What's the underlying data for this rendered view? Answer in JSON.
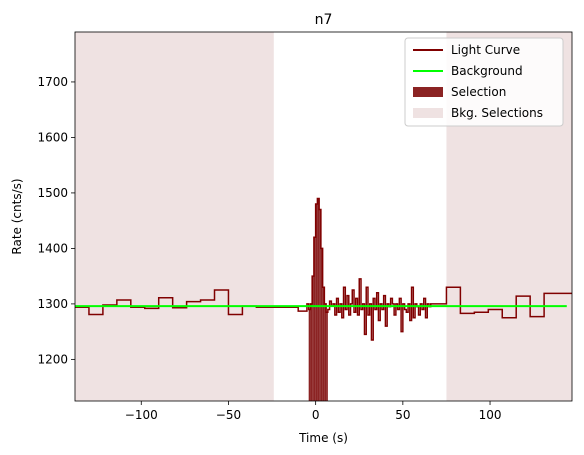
{
  "chart_data": {
    "type": "line",
    "title": "n7",
    "xlabel": "Time (s)",
    "ylabel": "Rate (cnts/s)",
    "xlim": [
      -138,
      147
    ],
    "ylim": [
      1125,
      1790
    ],
    "xticks": [
      -100,
      -50,
      0,
      50,
      100
    ],
    "xtick_labels": [
      "−100",
      "−50",
      "0",
      "50",
      "100"
    ],
    "yticks": [
      1200,
      1300,
      1400,
      1500,
      1600,
      1700
    ],
    "ytick_labels": [
      "1200",
      "1300",
      "1400",
      "1500",
      "1600",
      "1700"
    ],
    "legend_position": "top-right",
    "colors": {
      "light_curve": "#800000",
      "background": "#00ff00",
      "selection": "#8b2323",
      "bkg_selection": "#efe2e2"
    },
    "legend": [
      {
        "label": "Light Curve",
        "kind": "line",
        "color": "#800000"
      },
      {
        "label": "Background",
        "kind": "line",
        "color": "#00ff00"
      },
      {
        "label": "Selection",
        "kind": "patch",
        "color": "#8b2323"
      },
      {
        "label": "Bkg. Selections",
        "kind": "patch",
        "color": "#efe2e2"
      }
    ],
    "bkg_selections": [
      [
        -138,
        -24
      ],
      [
        75,
        147
      ]
    ],
    "background_level": 1296,
    "background_range": [
      -138,
      144
    ],
    "selection_range": [
      -4,
      7
    ],
    "light_curve": {
      "edges": [
        -138,
        -130,
        -122,
        -114,
        -106,
        -98,
        -90,
        -82,
        -74,
        -66,
        -58,
        -50,
        -42,
        -34,
        -26,
        -18,
        -10,
        -5,
        -4,
        -3,
        -2,
        -1,
        0,
        1,
        2,
        3,
        4,
        5,
        6,
        7,
        8,
        9,
        10,
        11,
        12,
        13,
        14,
        15,
        16,
        17,
        18,
        19,
        20,
        21,
        22,
        23,
        24,
        25,
        26,
        27,
        28,
        29,
        30,
        31,
        32,
        33,
        34,
        35,
        36,
        37,
        38,
        39,
        40,
        41,
        42,
        43,
        44,
        45,
        46,
        47,
        48,
        49,
        50,
        51,
        52,
        53,
        54,
        55,
        56,
        57,
        58,
        59,
        60,
        61,
        62,
        63,
        64,
        65,
        66,
        67,
        75,
        83,
        91,
        99,
        107,
        115,
        123,
        131,
        139,
        147
      ],
      "rates": [
        1294,
        1281,
        1298,
        1307,
        1294,
        1292,
        1311,
        1293,
        1304,
        1307,
        1325,
        1281,
        1296,
        1294,
        1294,
        1294,
        1287,
        1300,
        1290,
        1300,
        1350,
        1420,
        1480,
        1490,
        1470,
        1400,
        1330,
        1300,
        1285,
        1290,
        1305,
        1296,
        1300,
        1280,
        1310,
        1285,
        1300,
        1275,
        1330,
        1290,
        1315,
        1280,
        1300,
        1325,
        1285,
        1310,
        1280,
        1345,
        1290,
        1300,
        1245,
        1330,
        1280,
        1300,
        1235,
        1310,
        1290,
        1320,
        1270,
        1300,
        1290,
        1315,
        1260,
        1300,
        1295,
        1310,
        1300,
        1280,
        1300,
        1290,
        1310,
        1250,
        1300,
        1290,
        1285,
        1300,
        1270,
        1330,
        1275,
        1300,
        1295,
        1280,
        1300,
        1290,
        1310,
        1275,
        1300,
        1295,
        1300,
        1300,
        1330,
        1283,
        1285,
        1290,
        1275,
        1314,
        1277,
        1319,
        1319
      ]
    }
  }
}
